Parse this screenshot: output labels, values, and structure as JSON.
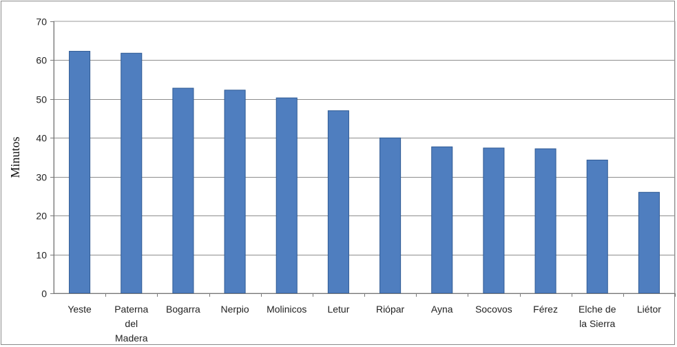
{
  "chart_data": {
    "type": "bar",
    "categories": [
      [
        "Yeste"
      ],
      [
        "Paterna",
        "del",
        "Madera"
      ],
      [
        "Bogarra"
      ],
      [
        "Nerpio"
      ],
      [
        "Molinicos"
      ],
      [
        "Letur"
      ],
      [
        "Riópar"
      ],
      [
        "Ayna"
      ],
      [
        "Socovos"
      ],
      [
        "Férez"
      ],
      [
        "Elche de",
        "la Sierra"
      ],
      [
        "Liétor"
      ]
    ],
    "values": [
      62.3,
      61.8,
      52.8,
      52.3,
      50.3,
      47.0,
      40.0,
      37.7,
      37.4,
      37.2,
      34.3,
      26.0
    ],
    "ylabel": "Minutos",
    "ylim": [
      0,
      70
    ],
    "yticks": [
      "0",
      "10",
      "20",
      "30",
      "40",
      "50",
      "60",
      "70"
    ],
    "grid": true,
    "bar_color": "#4f7ebf",
    "bar_edge_color": "#2f5a94"
  }
}
